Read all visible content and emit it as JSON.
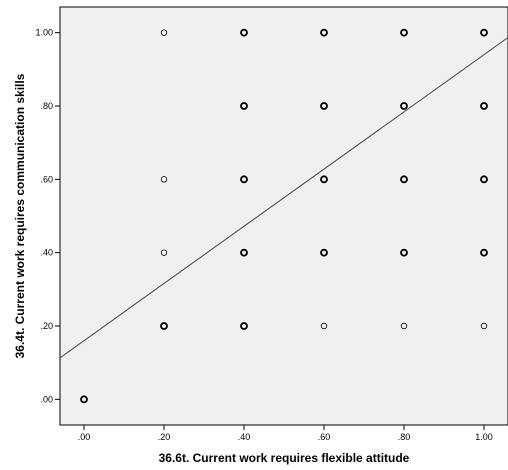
{
  "chart_data": {
    "type": "scatter",
    "xlabel": "36.6t. Current work requires flexible attitude",
    "ylabel": "36.4t. Current work requires communication skills",
    "xlim": [
      -0.06,
      1.06
    ],
    "ylim": [
      -0.07,
      1.07
    ],
    "x_ticks": [
      ".00",
      ".20",
      ".40",
      ".60",
      ".80",
      "1.00"
    ],
    "y_ticks": [
      ".00",
      ".20",
      ".40",
      ".60",
      ".80",
      "1.00"
    ],
    "x_tick_values": [
      0,
      0.2,
      0.4,
      0.6,
      0.8,
      1.0
    ],
    "y_tick_values": [
      0,
      0.2,
      0.4,
      0.6,
      0.8,
      1.0
    ],
    "grid": false,
    "background_color": "#f0f0f0",
    "marker_color": "#000000",
    "fit_line_color": "#444444",
    "points": [
      {
        "x": 0.0,
        "y": 0.0,
        "multi": true
      },
      {
        "x": 0.2,
        "y": 0.2,
        "multi": true
      },
      {
        "x": 0.2,
        "y": 0.4,
        "multi": false
      },
      {
        "x": 0.2,
        "y": 0.6,
        "multi": false
      },
      {
        "x": 0.2,
        "y": 1.0,
        "multi": false
      },
      {
        "x": 0.4,
        "y": 0.2,
        "multi": true
      },
      {
        "x": 0.4,
        "y": 0.4,
        "multi": true
      },
      {
        "x": 0.4,
        "y": 0.6,
        "multi": true
      },
      {
        "x": 0.4,
        "y": 0.8,
        "multi": true
      },
      {
        "x": 0.4,
        "y": 1.0,
        "multi": true
      },
      {
        "x": 0.6,
        "y": 0.2,
        "multi": false
      },
      {
        "x": 0.6,
        "y": 0.4,
        "multi": true
      },
      {
        "x": 0.6,
        "y": 0.6,
        "multi": true
      },
      {
        "x": 0.6,
        "y": 0.8,
        "multi": true
      },
      {
        "x": 0.6,
        "y": 1.0,
        "multi": true
      },
      {
        "x": 0.8,
        "y": 0.2,
        "multi": false
      },
      {
        "x": 0.8,
        "y": 0.4,
        "multi": true
      },
      {
        "x": 0.8,
        "y": 0.6,
        "multi": true
      },
      {
        "x": 0.8,
        "y": 0.8,
        "multi": true
      },
      {
        "x": 0.8,
        "y": 1.0,
        "multi": true
      },
      {
        "x": 1.0,
        "y": 0.2,
        "multi": false
      },
      {
        "x": 1.0,
        "y": 0.4,
        "multi": true
      },
      {
        "x": 1.0,
        "y": 0.6,
        "multi": true
      },
      {
        "x": 1.0,
        "y": 0.8,
        "multi": true
      },
      {
        "x": 1.0,
        "y": 1.0,
        "multi": true
      }
    ],
    "fit_line": {
      "intercept": 0.16,
      "slope": 0.78
    }
  }
}
